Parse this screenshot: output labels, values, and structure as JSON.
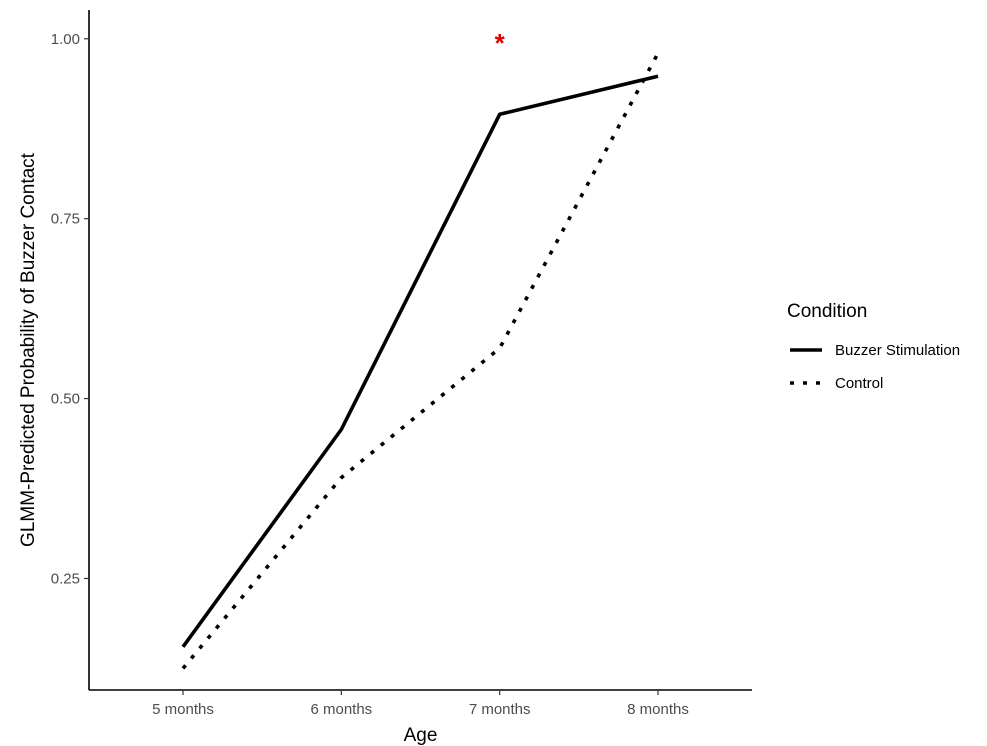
{
  "chart_data": {
    "type": "line",
    "title": "",
    "xlabel": "Age",
    "ylabel": "GLMM-Predicted Probability of Buzzer Contact",
    "categories": [
      "5 months",
      "6 months",
      "7 months",
      "8 months"
    ],
    "ylim": [
      0.095,
      1.04
    ],
    "yticks": [
      0.25,
      0.5,
      0.75,
      1.0
    ],
    "ytick_labels": [
      "0.25",
      "0.50",
      "0.75",
      "1.00"
    ],
    "grid": false,
    "legend": {
      "title": "Condition",
      "position": "right",
      "entries": [
        {
          "label": "Buzzer Stimulation",
          "style": "solid"
        },
        {
          "label": "Control",
          "style": "dotted"
        }
      ]
    },
    "series": [
      {
        "name": "Buzzer Stimulation",
        "style": "solid",
        "color": "#000000",
        "values": [
          0.155,
          0.457,
          0.895,
          0.948
        ]
      },
      {
        "name": "Control",
        "style": "dotted",
        "color": "#000000",
        "values": [
          0.125,
          0.39,
          0.57,
          0.98
        ]
      }
    ],
    "annotations": [
      {
        "text": "*",
        "x": "7 months",
        "y": 1.0,
        "color": "#e00000"
      }
    ]
  }
}
